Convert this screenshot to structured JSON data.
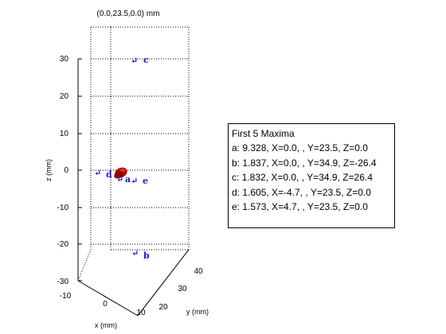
{
  "top_label": "(0.0,23.5,0.0) mm",
  "axes": {
    "xlabel": "x (mm)",
    "ylabel": "y (mm)",
    "zlabel": "z (mm)",
    "x_ticks": [
      "-10",
      "0",
      "10"
    ],
    "y_ticks": [
      "20",
      "30",
      "40"
    ],
    "z_ticks": [
      "30",
      "20",
      "10",
      "0",
      "-10",
      "-20",
      "-30"
    ],
    "grid": true
  },
  "maxima_markers": [
    "a",
    "b",
    "c",
    "d",
    "e"
  ],
  "colors": {
    "marker": "#1a1ad6",
    "blob": "#c00000",
    "grid": "#000000"
  },
  "legend": {
    "title": "First 5 Maxima",
    "items": [
      "a: 9.328, X=0.0, , Y=23.5, Z=0.0",
      "b: 1.837, X=0.0, , Y=34.9, Z=-26.4",
      "c: 1.832, X=0.0, , Y=34.9, Z=26.4",
      "d: 1.605, X=-4.7, , Y=23.5, Z=0.0",
      "e: 1.573, X=4.7, , Y=23.5, Z=0.0"
    ]
  }
}
